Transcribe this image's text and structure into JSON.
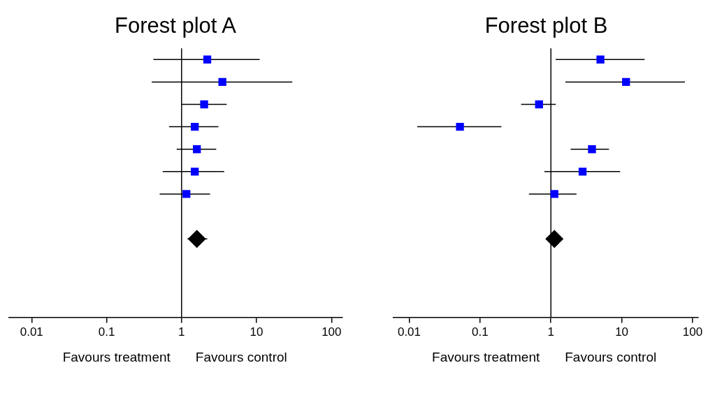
{
  "chart_data": [
    {
      "type": "scatter",
      "orientation": "horizontal",
      "title": "Forest plot A",
      "categories": [
        null,
        null,
        null,
        null,
        null,
        null,
        null,
        null,
        null,
        null,
        null,
        null
      ],
      "series": [
        {
          "color": "#0000ff",
          "marker": "square",
          "values": [
            2.2,
            3.5,
            2.0,
            1.5,
            1.6,
            1.5,
            1.16,
            null,
            null,
            null,
            null,
            null
          ],
          "errors": [
            [
              0.42,
              11
            ],
            [
              0.4,
              30
            ],
            [
              1.0,
              4.0
            ],
            [
              0.68,
              3.1
            ],
            [
              0.86,
              2.9
            ],
            [
              0.56,
              3.7
            ],
            [
              0.51,
              2.4
            ],
            null,
            null,
            null,
            null,
            null
          ]
        },
        {
          "color": "#000000",
          "marker": "diamond",
          "values": [
            null,
            null,
            null,
            null,
            null,
            null,
            null,
            null,
            1.6,
            null,
            null,
            null
          ],
          "errors": [
            null,
            null,
            null,
            null,
            null,
            null,
            null,
            null,
            [
              1.2,
              2.2
            ],
            null,
            null,
            null
          ]
        }
      ],
      "xlim": [
        0.005,
        140
      ],
      "xticks": [
        0.01,
        0.1,
        1,
        10,
        100
      ],
      "log": "x",
      "ref_lines": [
        {
          "axis": "x",
          "value": 1,
          "color": "#000000"
        }
      ],
      "annotations": [
        "Favours treatment",
        "Favours control"
      ],
      "tick_labels": "x",
      "grid": false,
      "legend": false
    },
    {
      "type": "scatter",
      "orientation": "horizontal",
      "title": "Forest plot B",
      "categories": [
        null,
        null,
        null,
        null,
        null,
        null,
        null,
        null,
        null,
        null,
        null,
        null
      ],
      "series": [
        {
          "color": "#0000ff",
          "marker": "square",
          "values": [
            5.0,
            11.5,
            0.68,
            0.052,
            3.8,
            2.8,
            1.12,
            null,
            null,
            null,
            null,
            null
          ],
          "errors": [
            [
              1.17,
              21
            ],
            [
              1.6,
              78
            ],
            [
              0.38,
              1.17
            ],
            [
              0.013,
              0.2
            ],
            [
              1.9,
              6.6
            ],
            [
              0.81,
              9.5
            ],
            [
              0.49,
              2.3
            ],
            null,
            null,
            null,
            null,
            null
          ]
        },
        {
          "color": "#000000",
          "marker": "diamond",
          "values": [
            null,
            null,
            null,
            null,
            null,
            null,
            null,
            null,
            1.12,
            null,
            null,
            null
          ],
          "errors": [
            null,
            null,
            null,
            null,
            null,
            null,
            null,
            null,
            [
              0.85,
              1.47
            ],
            null,
            null,
            null
          ]
        }
      ],
      "xlim": [
        0.006,
        120
      ],
      "xticks": [
        0.01,
        0.1,
        1,
        10,
        100
      ],
      "log": "x",
      "ref_lines": [
        {
          "axis": "x",
          "value": 1,
          "color": "#000000"
        }
      ],
      "annotations": [
        "Favours treatment",
        "Favours control"
      ],
      "tick_labels": "x",
      "grid": false,
      "legend": false
    }
  ]
}
